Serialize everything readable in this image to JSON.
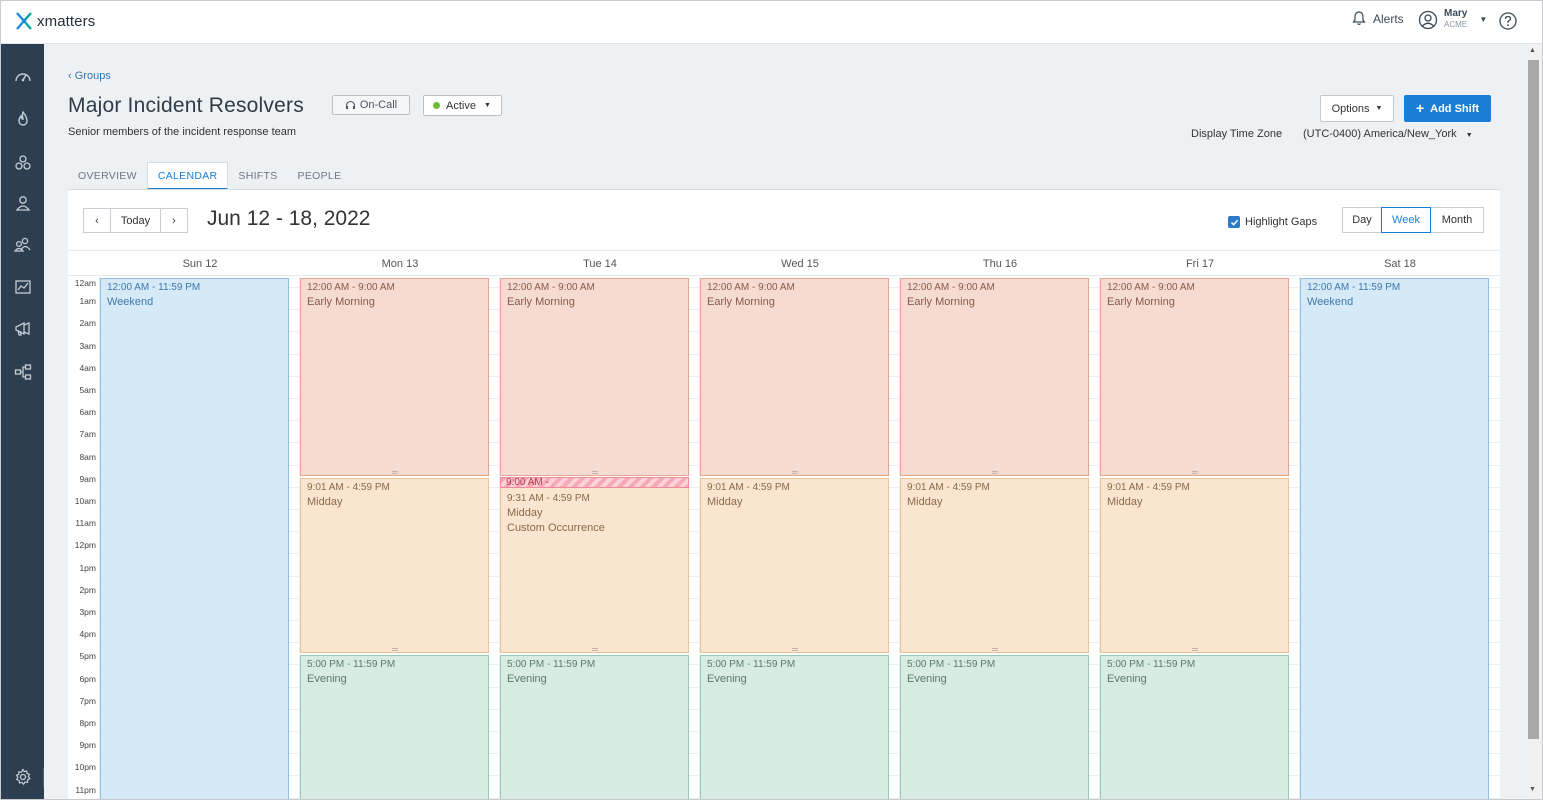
{
  "app": {
    "name": "xmatters"
  },
  "header": {
    "alerts_label": "Alerts",
    "user_name": "Mary",
    "user_org": "ACME"
  },
  "sidebar": {
    "items": [
      "dashboard-icon",
      "incidents-icon",
      "groups-icon",
      "users-icon",
      "teams-icon",
      "reports-icon",
      "messaging-icon",
      "workflows-icon"
    ],
    "settings": "settings-icon",
    "expand_glyph": "»"
  },
  "page": {
    "breadcrumb": "Groups",
    "breadcrumb_glyph": "‹",
    "title": "Major Incident Resolvers",
    "oncall_label": "On-Call",
    "status_label": "Active",
    "subtitle": "Senior members of the incident response team",
    "options_label": "Options",
    "add_shift_label": "Add Shift",
    "tz_label": "Display Time Zone",
    "tz_value": "(UTC-0400) America/New_York"
  },
  "tabs": [
    {
      "label": "OVERVIEW",
      "active": false
    },
    {
      "label": "CALENDAR",
      "active": true
    },
    {
      "label": "SHIFTS",
      "active": false
    },
    {
      "label": "PEOPLE",
      "active": false
    }
  ],
  "calendar": {
    "prev_glyph": "‹",
    "today_label": "Today",
    "next_glyph": "›",
    "range_title": "Jun 12 - 18, 2022",
    "highlight_gaps_label": "Highlight Gaps",
    "highlight_gaps_checked": true,
    "views": [
      {
        "label": "Day",
        "active": false
      },
      {
        "label": "Week",
        "active": true
      },
      {
        "label": "Month",
        "active": false
      }
    ],
    "days": [
      "Sun 12",
      "Mon 13",
      "Tue 14",
      "Wed 15",
      "Thu 16",
      "Fri 17",
      "Sat 18"
    ],
    "hours": [
      "12am",
      "1am",
      "2am",
      "3am",
      "4am",
      "5am",
      "6am",
      "7am",
      "8am",
      "9am",
      "10am",
      "11am",
      "12pm",
      "1pm",
      "2pm",
      "3pm",
      "4pm",
      "5pm",
      "6pm",
      "7pm",
      "8pm",
      "9pm",
      "10pm",
      "11pm"
    ],
    "shifts": [
      {
        "day": 0,
        "start": 0,
        "end": 24,
        "time": "12:00 AM - 11:59 PM",
        "name": "Weekend",
        "kind": "weekend"
      },
      {
        "day": 1,
        "start": 0,
        "end": 9,
        "time": "12:00 AM - 9:00 AM",
        "name": "Early Morning",
        "kind": "morning"
      },
      {
        "day": 1,
        "start": 9,
        "end": 17,
        "time": "9:01 AM - 4:59 PM",
        "name": "Midday",
        "kind": "midday"
      },
      {
        "day": 1,
        "start": 17,
        "end": 24,
        "time": "5:00 PM - 11:59 PM",
        "name": "Evening",
        "kind": "evening"
      },
      {
        "day": 2,
        "start": 0,
        "end": 9,
        "time": "12:00 AM - 9:00 AM",
        "name": "Early Morning",
        "kind": "morning"
      },
      {
        "day": 2,
        "start": 9,
        "end": 17,
        "time": "9:31 AM - 4:59 PM",
        "name": "Midday",
        "extra": "Custom Occurrence",
        "kind": "midday"
      },
      {
        "day": 2,
        "start": 17,
        "end": 24,
        "time": "5:00 PM - 11:59 PM",
        "name": "Evening",
        "kind": "evening"
      },
      {
        "day": 3,
        "start": 0,
        "end": 9,
        "time": "12:00 AM - 9:00 AM",
        "name": "Early Morning",
        "kind": "morning"
      },
      {
        "day": 3,
        "start": 9,
        "end": 17,
        "time": "9:01 AM - 4:59 PM",
        "name": "Midday",
        "kind": "midday"
      },
      {
        "day": 3,
        "start": 17,
        "end": 24,
        "time": "5:00 PM - 11:59 PM",
        "name": "Evening",
        "kind": "evening"
      },
      {
        "day": 4,
        "start": 0,
        "end": 9,
        "time": "12:00 AM - 9:00 AM",
        "name": "Early Morning",
        "kind": "morning"
      },
      {
        "day": 4,
        "start": 9,
        "end": 17,
        "time": "9:01 AM - 4:59 PM",
        "name": "Midday",
        "kind": "midday"
      },
      {
        "day": 4,
        "start": 17,
        "end": 24,
        "time": "5:00 PM - 11:59 PM",
        "name": "Evening",
        "kind": "evening"
      },
      {
        "day": 5,
        "start": 0,
        "end": 9,
        "time": "12:00 AM - 9:00 AM",
        "name": "Early Morning",
        "kind": "morning"
      },
      {
        "day": 5,
        "start": 9,
        "end": 17,
        "time": "9:01 AM - 4:59 PM",
        "name": "Midday",
        "kind": "midday"
      },
      {
        "day": 5,
        "start": 17,
        "end": 24,
        "time": "5:00 PM - 11:59 PM",
        "name": "Evening",
        "kind": "evening"
      },
      {
        "day": 6,
        "start": 0,
        "end": 24,
        "time": "12:00 AM - 11:59 PM",
        "name": "Weekend",
        "kind": "weekend"
      }
    ],
    "gap_label": "9:00 AM -"
  },
  "colors": {
    "accent": "#1a7fd4",
    "sidebar": "#2c3e50",
    "weekend": "#d6e9f6",
    "early_morning": "#f6dbd2",
    "midday": "#f9e5d0",
    "evening": "#d9ece3",
    "gap": "#f5aab5",
    "active_dot": "#6cbf33"
  }
}
